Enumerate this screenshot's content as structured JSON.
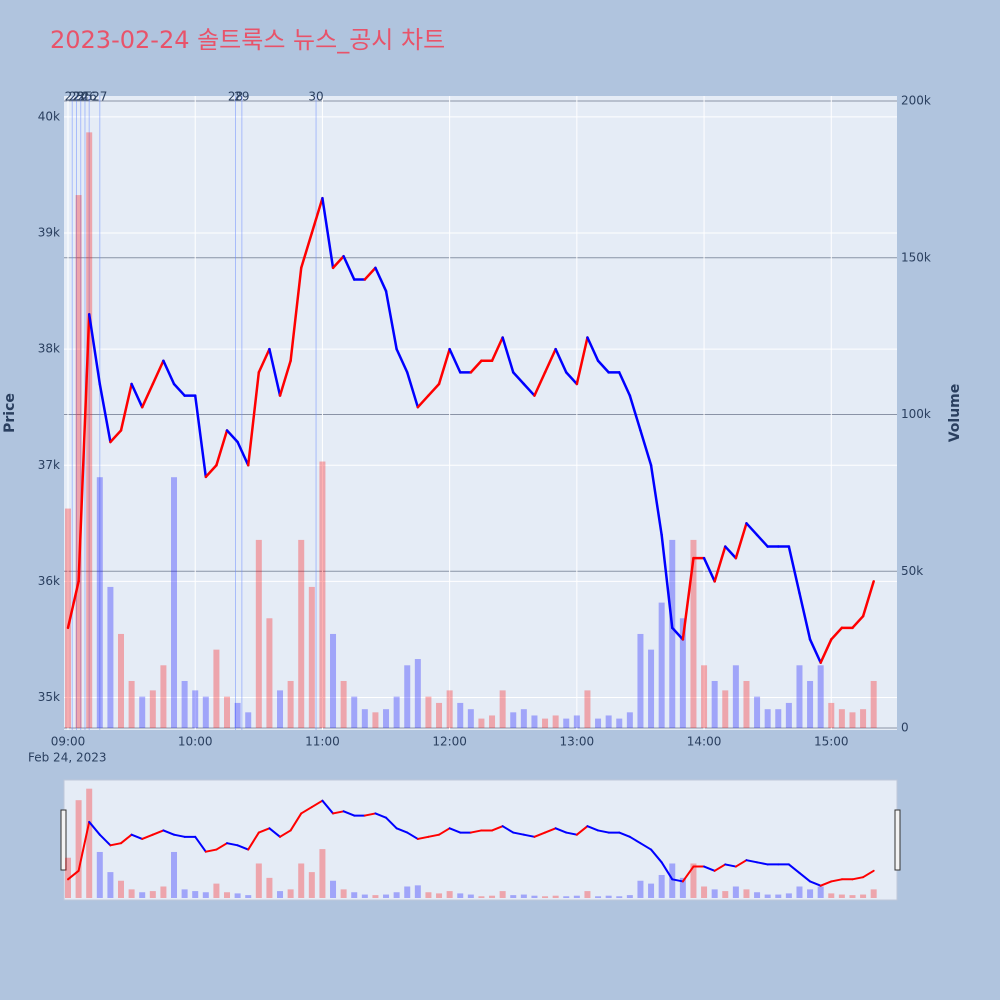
{
  "chart_data": {
    "type": "price-volume",
    "title": "2023-02-24 솔트룩스 뉴스_공시 차트",
    "y_title": "Price",
    "y2_title": "Volume",
    "x_date_label": "Feb 24, 2023",
    "x": [
      "09:00",
      "09:05",
      "09:10",
      "09:15",
      "09:20",
      "09:25",
      "09:30",
      "09:35",
      "09:40",
      "09:45",
      "09:50",
      "09:55",
      "10:00",
      "10:05",
      "10:10",
      "10:15",
      "10:20",
      "10:25",
      "10:30",
      "10:35",
      "10:40",
      "10:45",
      "10:50",
      "10:55",
      "11:00",
      "11:05",
      "11:10",
      "11:15",
      "11:20",
      "11:25",
      "11:30",
      "11:35",
      "11:40",
      "11:45",
      "11:50",
      "11:55",
      "12:00",
      "12:05",
      "12:10",
      "12:15",
      "12:20",
      "12:25",
      "12:30",
      "12:35",
      "12:40",
      "12:45",
      "12:50",
      "12:55",
      "13:00",
      "13:05",
      "13:10",
      "13:15",
      "13:20",
      "13:25",
      "13:30",
      "13:35",
      "13:40",
      "13:45",
      "13:50",
      "13:55",
      "14:00",
      "14:05",
      "14:10",
      "14:15",
      "14:20",
      "14:25",
      "14:30",
      "14:35",
      "14:40",
      "14:45",
      "14:50",
      "14:55",
      "15:00",
      "15:05",
      "15:10",
      "15:15",
      "15:20"
    ],
    "series": [
      {
        "name": "Price",
        "values": [
          35600,
          36000,
          38300,
          37700,
          37200,
          37300,
          37700,
          37500,
          37700,
          37900,
          37700,
          37600,
          37600,
          36900,
          37000,
          37300,
          37200,
          37000,
          37800,
          38000,
          37600,
          37900,
          38700,
          39000,
          39300,
          38700,
          38800,
          38600,
          38600,
          38700,
          38500,
          38000,
          37800,
          37500,
          37600,
          37700,
          38000,
          37800,
          37800,
          37900,
          37900,
          38100,
          37800,
          37700,
          37600,
          37800,
          38000,
          37800,
          37700,
          38100,
          37900,
          37800,
          37800,
          37600,
          37300,
          37000,
          36400,
          35600,
          35500,
          36200,
          36200,
          36000,
          36300,
          36200,
          36500,
          36400,
          36300,
          36300,
          36300,
          35900,
          35500,
          35300,
          35500,
          35600,
          35600,
          35700,
          36000
        ]
      },
      {
        "name": "Volume",
        "axis": "y2",
        "values": [
          70000,
          170000,
          190000,
          80000,
          45000,
          30000,
          15000,
          10000,
          12000,
          20000,
          80000,
          15000,
          12000,
          10000,
          25000,
          10000,
          8000,
          5000,
          60000,
          35000,
          12000,
          15000,
          60000,
          45000,
          85000,
          30000,
          15000,
          10000,
          6000,
          5000,
          6000,
          10000,
          20000,
          22000,
          10000,
          8000,
          12000,
          8000,
          6000,
          3000,
          4000,
          12000,
          5000,
          6000,
          4000,
          3000,
          4000,
          3000,
          4000,
          12000,
          3000,
          4000,
          3000,
          5000,
          30000,
          25000,
          40000,
          60000,
          35000,
          60000,
          20000,
          15000,
          12000,
          20000,
          15000,
          10000,
          6000,
          6000,
          8000,
          20000,
          15000,
          20000,
          8000,
          6000,
          5000,
          6000,
          15000
        ]
      }
    ],
    "up_color": "#ff0000",
    "down_color": "#0000ff",
    "xlim": [
      "09:00",
      "15:31"
    ],
    "xticks": [
      "09:00",
      "10:00",
      "11:00",
      "12:00",
      "13:00",
      "14:00",
      "15:00"
    ],
    "ylim": [
      34720,
      40180
    ],
    "yticks": [
      {
        "value": 35000,
        "label": "35k"
      },
      {
        "value": 36000,
        "label": "36k"
      },
      {
        "value": 37000,
        "label": "37k"
      },
      {
        "value": 38000,
        "label": "38k"
      },
      {
        "value": 39000,
        "label": "39k"
      },
      {
        "value": 40000,
        "label": "40k"
      }
    ],
    "y2lim": [
      0,
      201600
    ],
    "y2ticks": [
      0,
      {
        "value": 50000,
        "label": "50k"
      },
      {
        "value": 100000,
        "label": "100k"
      },
      {
        "value": 150000,
        "label": "150k"
      },
      {
        "value": 200000,
        "label": "200k"
      }
    ],
    "grid": true,
    "range_slider": true,
    "annotations": [
      {
        "x": "09:02",
        "label": "22"
      },
      {
        "x": "09:04",
        "label": "23"
      },
      {
        "x": "09:06",
        "label": "24"
      },
      {
        "x": "09:08",
        "label": "25"
      },
      {
        "x": "09:10",
        "label": "26"
      },
      {
        "x": "09:15",
        "label": "27"
      },
      {
        "x": "10:19",
        "label": "28"
      },
      {
        "x": "10:22",
        "label": "29"
      },
      {
        "x": "10:57",
        "label": "30"
      }
    ]
  }
}
